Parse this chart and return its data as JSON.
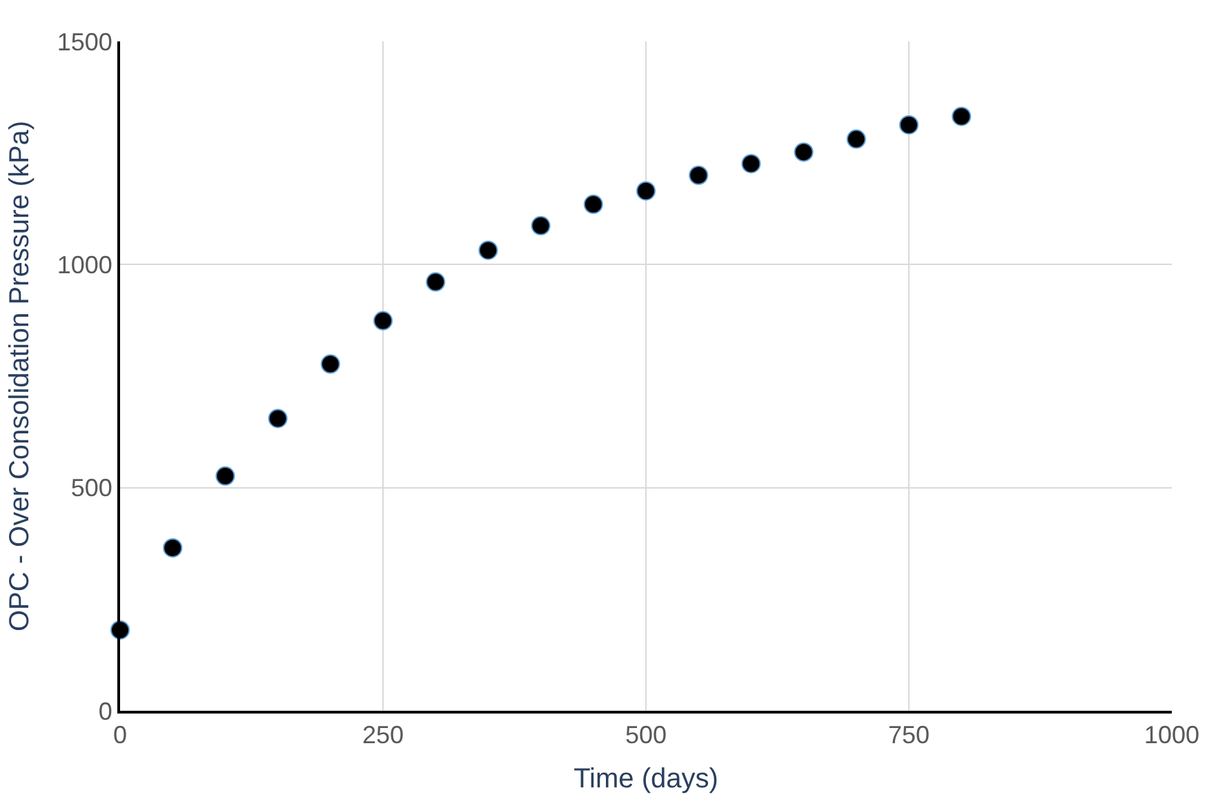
{
  "chart_data": {
    "type": "scatter",
    "xlabel": "Time (days)",
    "ylabel": "OPC - Over Consolidation Pressure (kPa)",
    "x": [
      0,
      50,
      100,
      150,
      200,
      250,
      300,
      350,
      400,
      450,
      500,
      550,
      600,
      650,
      700,
      750,
      800
    ],
    "series": [
      {
        "color": "#000000",
        "values": [
          181,
          365,
          526,
          655,
          777,
          874,
          961,
          1032,
          1087,
          1135,
          1165,
          1200,
          1226,
          1252,
          1281,
          1313,
          1332
        ]
      }
    ],
    "xlim": [
      0,
      1000
    ],
    "xticks": [
      0,
      250,
      500,
      750,
      1000
    ],
    "ylim": [
      0,
      1500
    ],
    "yticks": [
      0,
      500,
      1000,
      1500
    ],
    "grid": true,
    "legend": false,
    "marker": "circle"
  }
}
